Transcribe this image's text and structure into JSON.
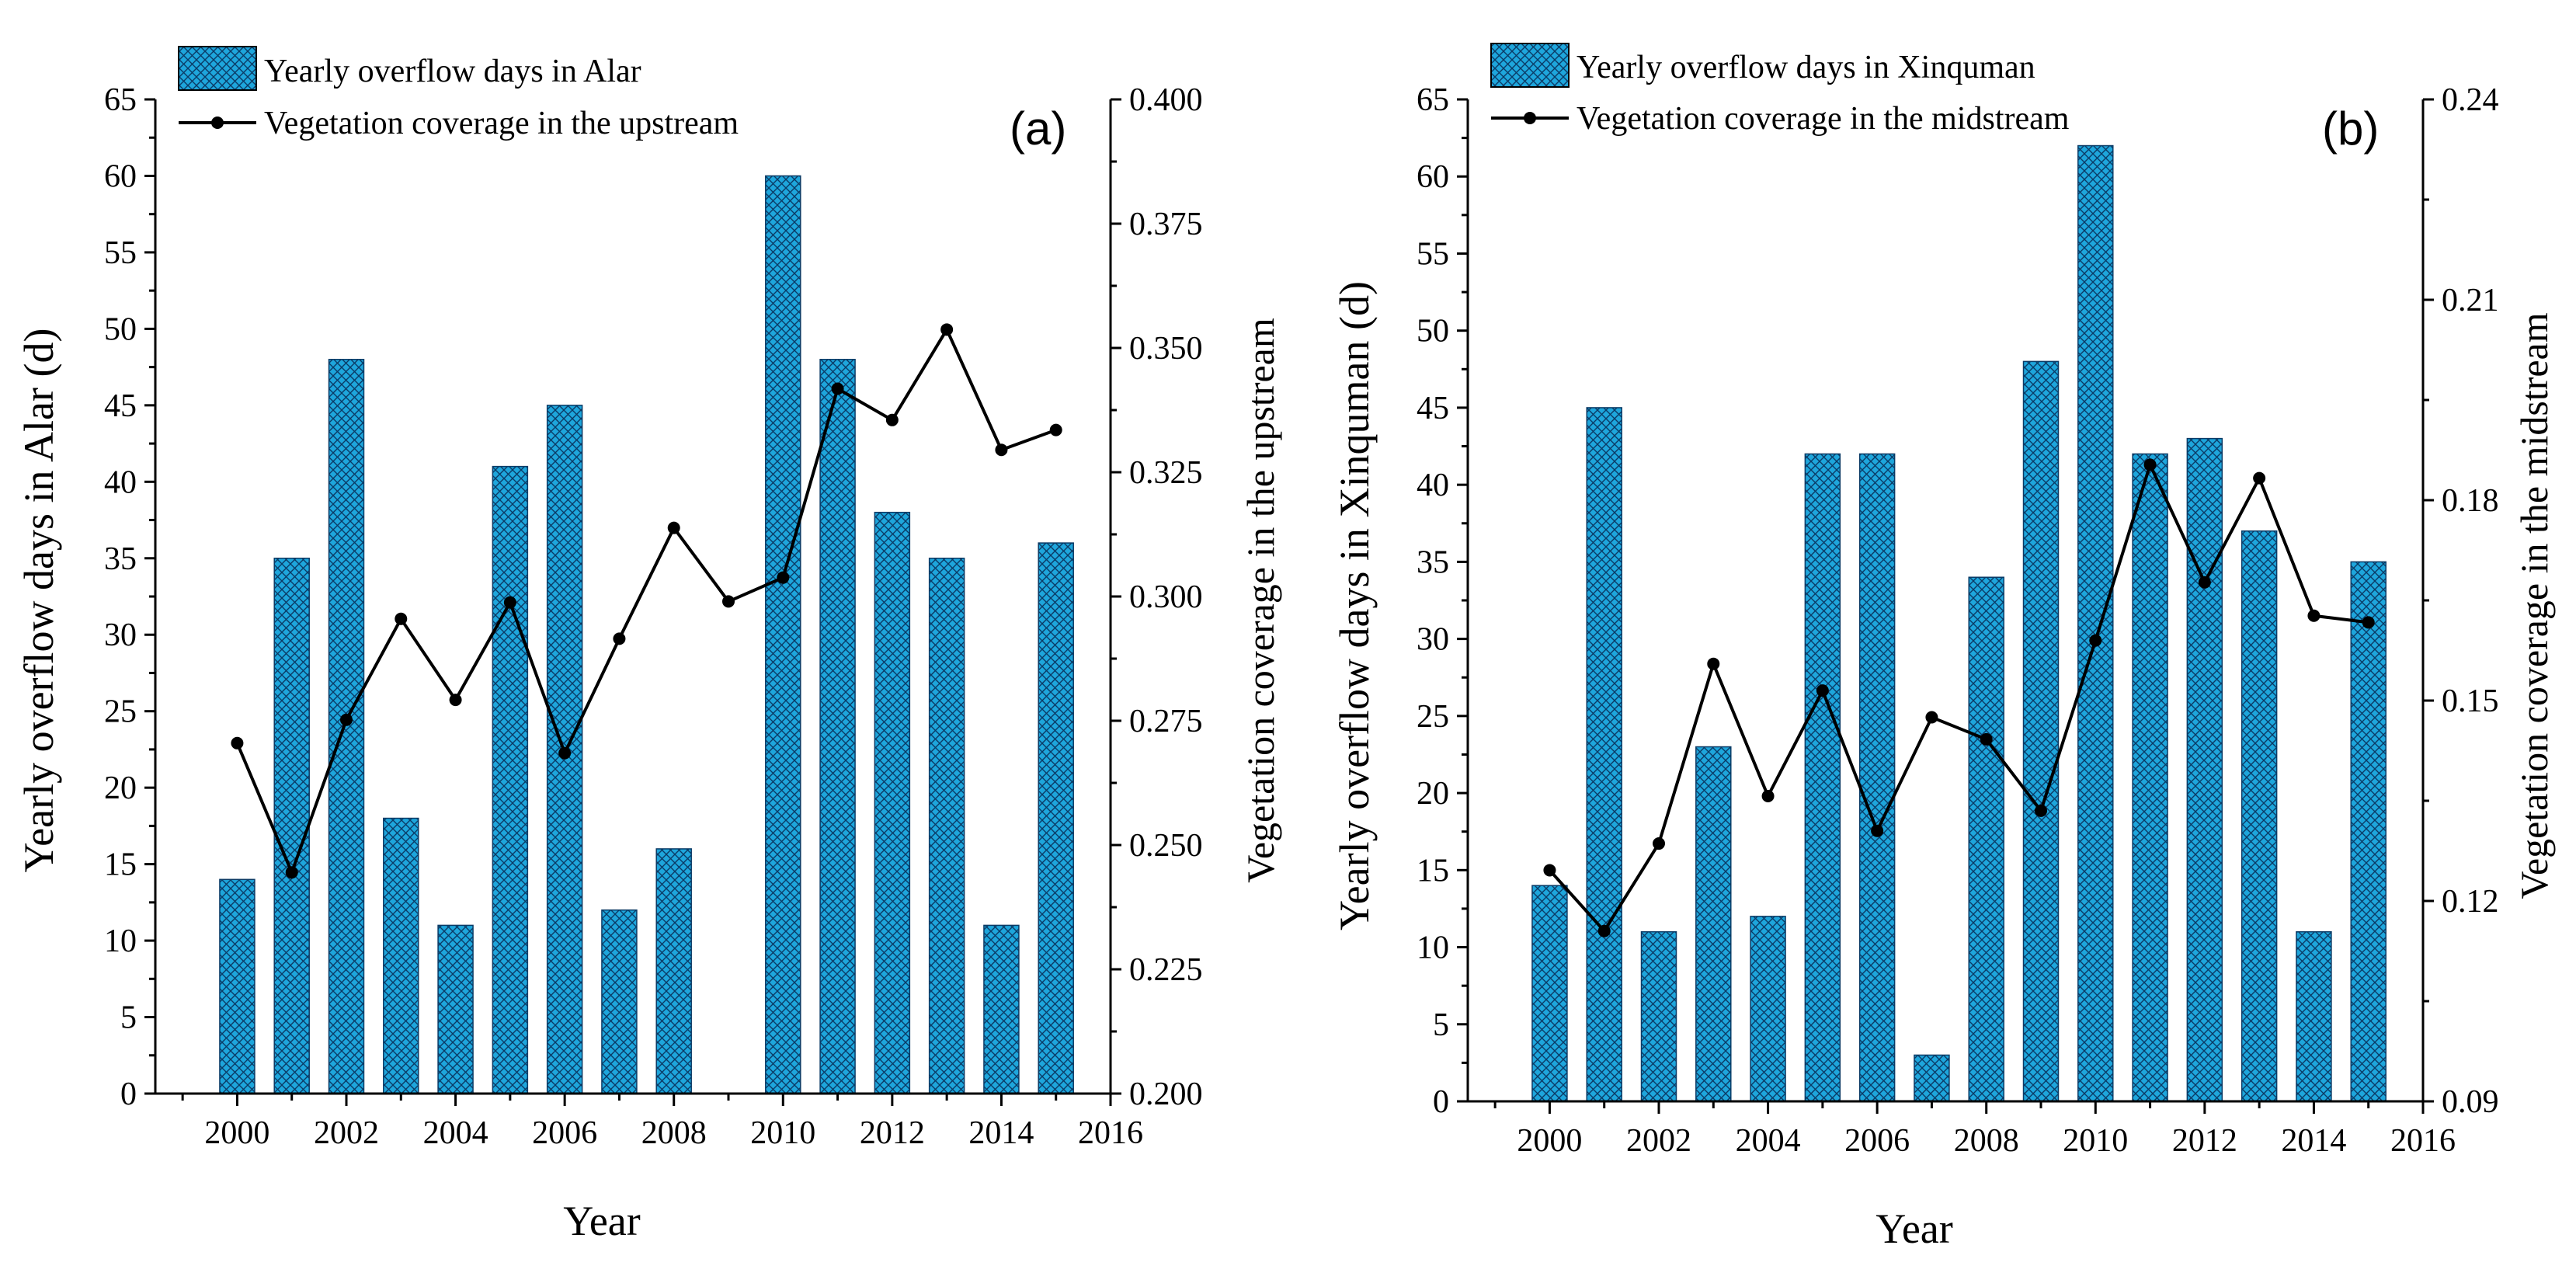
{
  "colors": {
    "bar_fill": "#1ea6dc",
    "bar_hatch": "#0b3b66",
    "line": "#000000"
  },
  "chart_data": [
    {
      "type": "bar",
      "panel_label": "(a)",
      "xlabel": "Year",
      "ylabel": "Yearly overflow days in Alar (d)",
      "y2label": "Vegetation coverage in the upstream",
      "xlim": [
        1998.5,
        2016
      ],
      "xticks": [
        "2000",
        "2002",
        "2004",
        "2006",
        "2008",
        "2010",
        "2012",
        "2014",
        "2016"
      ],
      "ylim": [
        0,
        65
      ],
      "yticks": [
        "0",
        "5",
        "10",
        "15",
        "20",
        "25",
        "30",
        "35",
        "40",
        "45",
        "50",
        "55",
        "60",
        "65"
      ],
      "y2lim": [
        0.2,
        0.4
      ],
      "y2ticks": [
        "0.200",
        "0.225",
        "0.250",
        "0.275",
        "0.300",
        "0.325",
        "0.350",
        "0.375",
        "0.400"
      ],
      "legend_position": "top-left",
      "x": [
        2000,
        2001,
        2002,
        2003,
        2004,
        2005,
        2006,
        2007,
        2008,
        2009,
        2010,
        2011,
        2012,
        2013,
        2014,
        2015
      ],
      "series": [
        {
          "name": "Yearly overflow days in Alar",
          "type": "bar",
          "axis": "left",
          "values": [
            14,
            35,
            48,
            18,
            11,
            41,
            45,
            12,
            16,
            0,
            60,
            48,
            38,
            35,
            11,
            36
          ]
        },
        {
          "name": "Vegetation coverage in the upstream",
          "type": "line",
          "axis": "right",
          "values": [
            0.2705,
            0.2445,
            0.2752,
            0.2955,
            0.2792,
            0.2988,
            0.2685,
            0.2915,
            0.3138,
            0.299,
            0.3038,
            0.3418,
            0.3355,
            0.3537,
            0.3295,
            0.3335
          ]
        }
      ]
    },
    {
      "type": "bar",
      "panel_label": "(b)",
      "xlabel": "Year",
      "ylabel": "Yearly overflow days in Xinquman (d)",
      "y2label": "Vegetation coverage in the midstream",
      "xlim": [
        1998.5,
        2016
      ],
      "xticks": [
        "2000",
        "2002",
        "2004",
        "2006",
        "2008",
        "2010",
        "2012",
        "2014",
        "2016"
      ],
      "ylim": [
        0,
        65
      ],
      "yticks": [
        "0",
        "5",
        "10",
        "15",
        "20",
        "25",
        "30",
        "35",
        "40",
        "45",
        "50",
        "55",
        "60",
        "65"
      ],
      "y2lim": [
        0.09,
        0.24
      ],
      "y2ticks": [
        "0.09",
        "0.12",
        "0.15",
        "0.18",
        "0.21",
        "0.24"
      ],
      "legend_position": "top-left",
      "x": [
        2000,
        2001,
        2002,
        2003,
        2004,
        2005,
        2006,
        2007,
        2008,
        2009,
        2010,
        2011,
        2012,
        2013,
        2014,
        2015
      ],
      "series": [
        {
          "name": "Yearly overflow days in Xinquman",
          "type": "bar",
          "axis": "left",
          "values": [
            14,
            45,
            11,
            23,
            12,
            42,
            42,
            3,
            34,
            48,
            62,
            42,
            43,
            37,
            11,
            35
          ]
        },
        {
          "name": "Vegetation coverage in the midstream",
          "type": "line",
          "axis": "right",
          "values": [
            0.1246,
            0.1155,
            0.1286,
            0.1555,
            0.1357,
            0.1515,
            0.1305,
            0.1475,
            0.1442,
            0.1335,
            0.159,
            0.1853,
            0.1677,
            0.1833,
            0.1627,
            0.1617
          ]
        }
      ]
    }
  ]
}
